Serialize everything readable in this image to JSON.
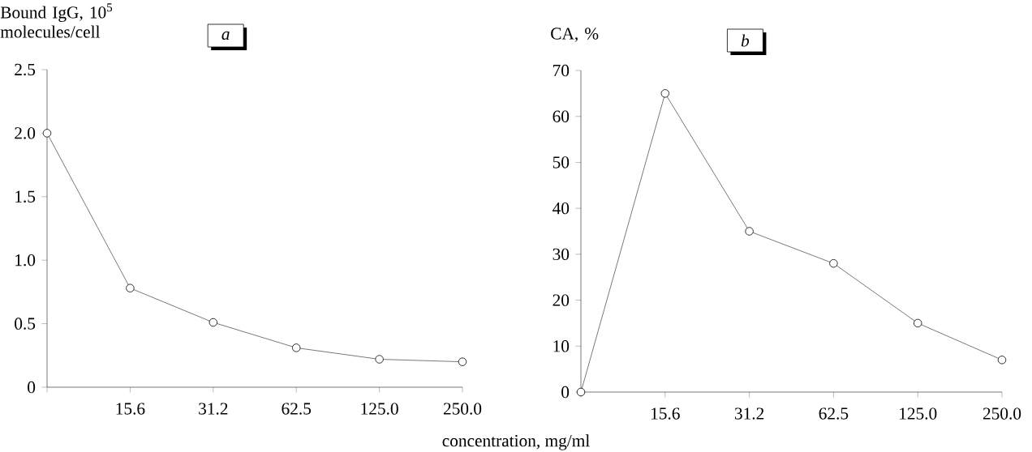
{
  "chart_data": [
    {
      "type": "line",
      "title": "a",
      "ylabel": "Bound IgG, 10$^{5}$ molecules/cell",
      "xlabel": "concentration, mg/ml",
      "categories": [
        null,
        "15.6",
        "31.2",
        "62.5",
        "125.0",
        "250.0"
      ],
      "values": [
        2.0,
        0.78,
        0.51,
        0.31,
        0.22,
        0.2
      ],
      "color": "#000000",
      "marker": "circle",
      "line_style": "solid",
      "ylim": [
        0,
        2.5
      ],
      "yticks": [
        0,
        {
          "value": 0.5,
          "label": "0.5"
        },
        {
          "value": 1,
          "label": "1.0"
        },
        {
          "value": 1.5,
          "label": "1.5"
        },
        {
          "value": 2,
          "label": "2.0"
        },
        {
          "value": 2.5,
          "label": "2.5"
        }
      ],
      "grid": false
    },
    {
      "type": "line",
      "title": "b",
      "ylabel": "CA, %",
      "categories": [
        null,
        "15.6",
        "31.2",
        "62.5",
        "125.0",
        "250.0"
      ],
      "values": [
        0,
        65,
        35,
        28,
        15,
        7
      ],
      "color": "#000000",
      "marker": "circle",
      "line_style": "solid",
      "ylim": [
        0,
        70
      ],
      "yticks": [
        0,
        10,
        20,
        30,
        40,
        50,
        60,
        70
      ],
      "grid": false
    }
  ]
}
